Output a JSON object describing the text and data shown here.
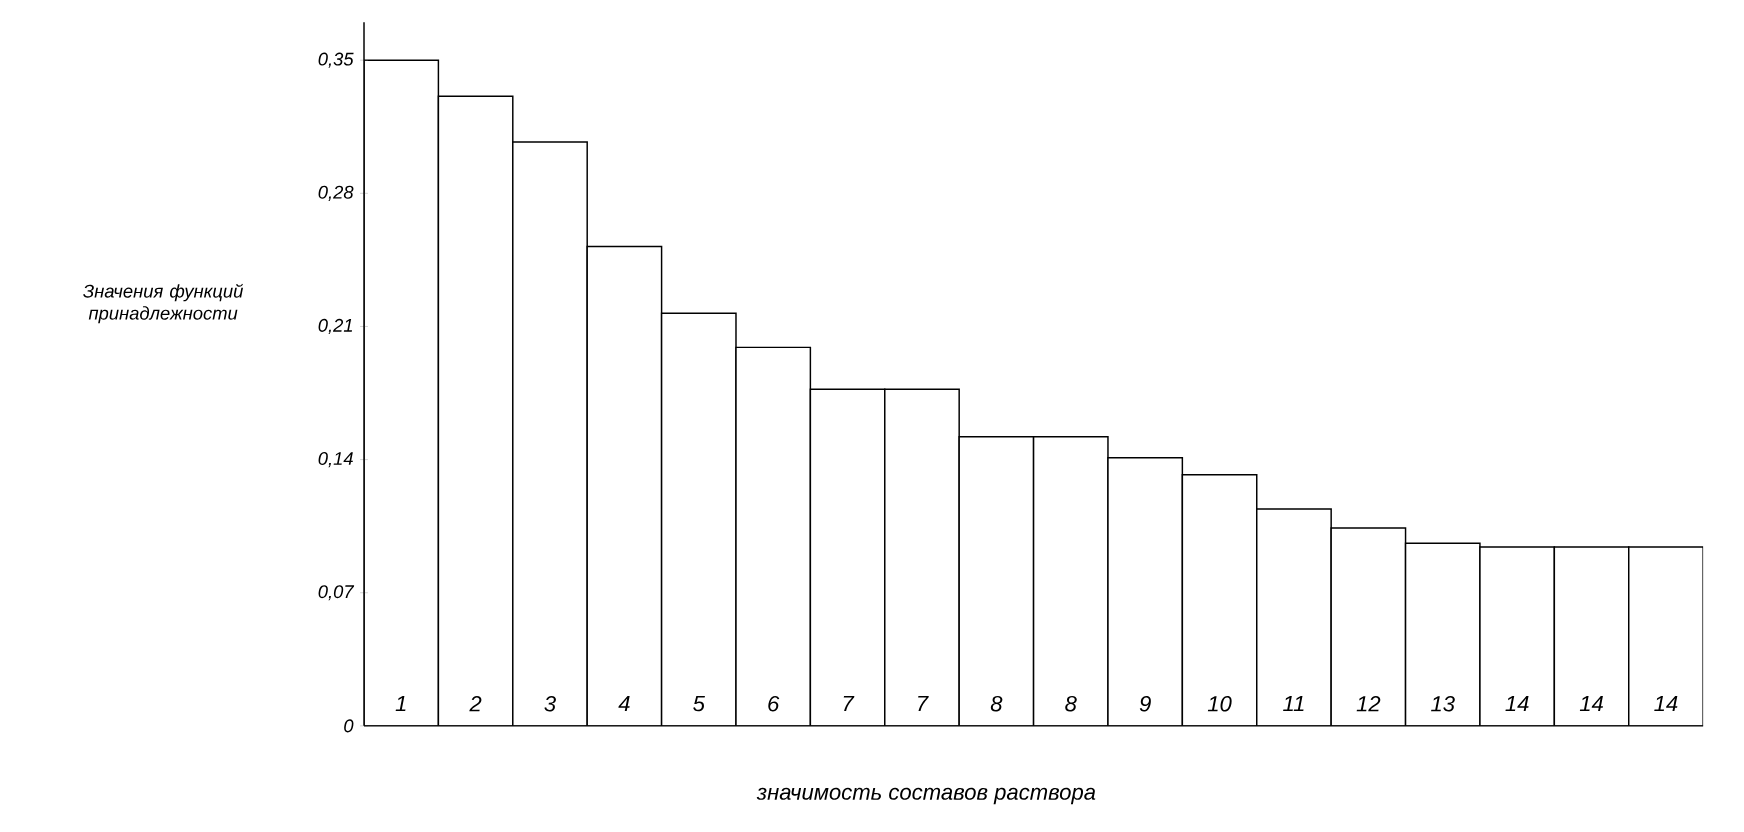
{
  "chart_data": {
    "type": "bar",
    "xlabel": "значимость составов раствора",
    "ylabel": "Значения функций принадлежности",
    "categories": [
      "1",
      "2",
      "3",
      "4",
      "5",
      "6",
      "7",
      "7",
      "8",
      "8",
      "9",
      "10",
      "11",
      "12",
      "13",
      "14",
      "14",
      "14"
    ],
    "values": [
      0.35,
      0.331,
      0.307,
      0.252,
      0.217,
      0.199,
      0.177,
      0.177,
      0.152,
      0.152,
      0.141,
      0.132,
      0.114,
      0.104,
      0.096,
      0.094,
      0.094,
      0.094
    ],
    "color": "#ffffff",
    "ylim": [
      0,
      0.37
    ],
    "yticks": [
      {
        "value": 0,
        "label": "0"
      },
      {
        "value": 0.07,
        "label": "0,07"
      },
      {
        "value": 0.14,
        "label": "0,14"
      },
      {
        "value": 0.21,
        "label": "0,21"
      },
      {
        "value": 0.28,
        "label": "0,28"
      },
      {
        "value": 0.35,
        "label": "0,35"
      }
    ],
    "grid": false
  }
}
